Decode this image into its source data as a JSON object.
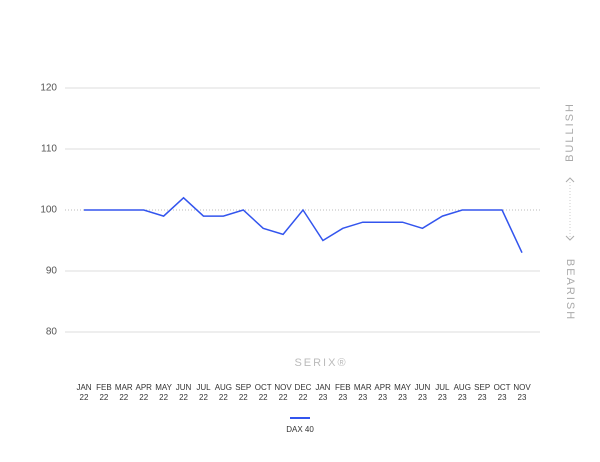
{
  "chart_data": {
    "type": "line",
    "categories": [
      "JAN 22",
      "FEB 22",
      "MAR 22",
      "APR 22",
      "MAY 22",
      "JUN 22",
      "JUL 22",
      "AUG 22",
      "SEP 22",
      "OCT 22",
      "NOV 22",
      "DEC 22",
      "JAN 23",
      "FEB 23",
      "MAR 23",
      "APR 23",
      "MAY 23",
      "JUN 23",
      "JUL 23",
      "AUG 23",
      "SEP 23",
      "OCT 23",
      "NOV 23"
    ],
    "series": [
      {
        "name": "DAX 40",
        "color": "#3355ee",
        "values": [
          100,
          100,
          100,
          100,
          99,
          102,
          99,
          99,
          100,
          97,
          96,
          100,
          95,
          97,
          98,
          98,
          98,
          97,
          99,
          100,
          100,
          100,
          93
        ]
      }
    ],
    "ylim": [
      80,
      120
    ],
    "yticks": [
      80,
      90,
      100,
      110,
      120
    ],
    "grid": true,
    "reference_line": 100,
    "watermark": "SERIX®",
    "upper_label": "BULLISH",
    "lower_label": "BEARISH"
  }
}
